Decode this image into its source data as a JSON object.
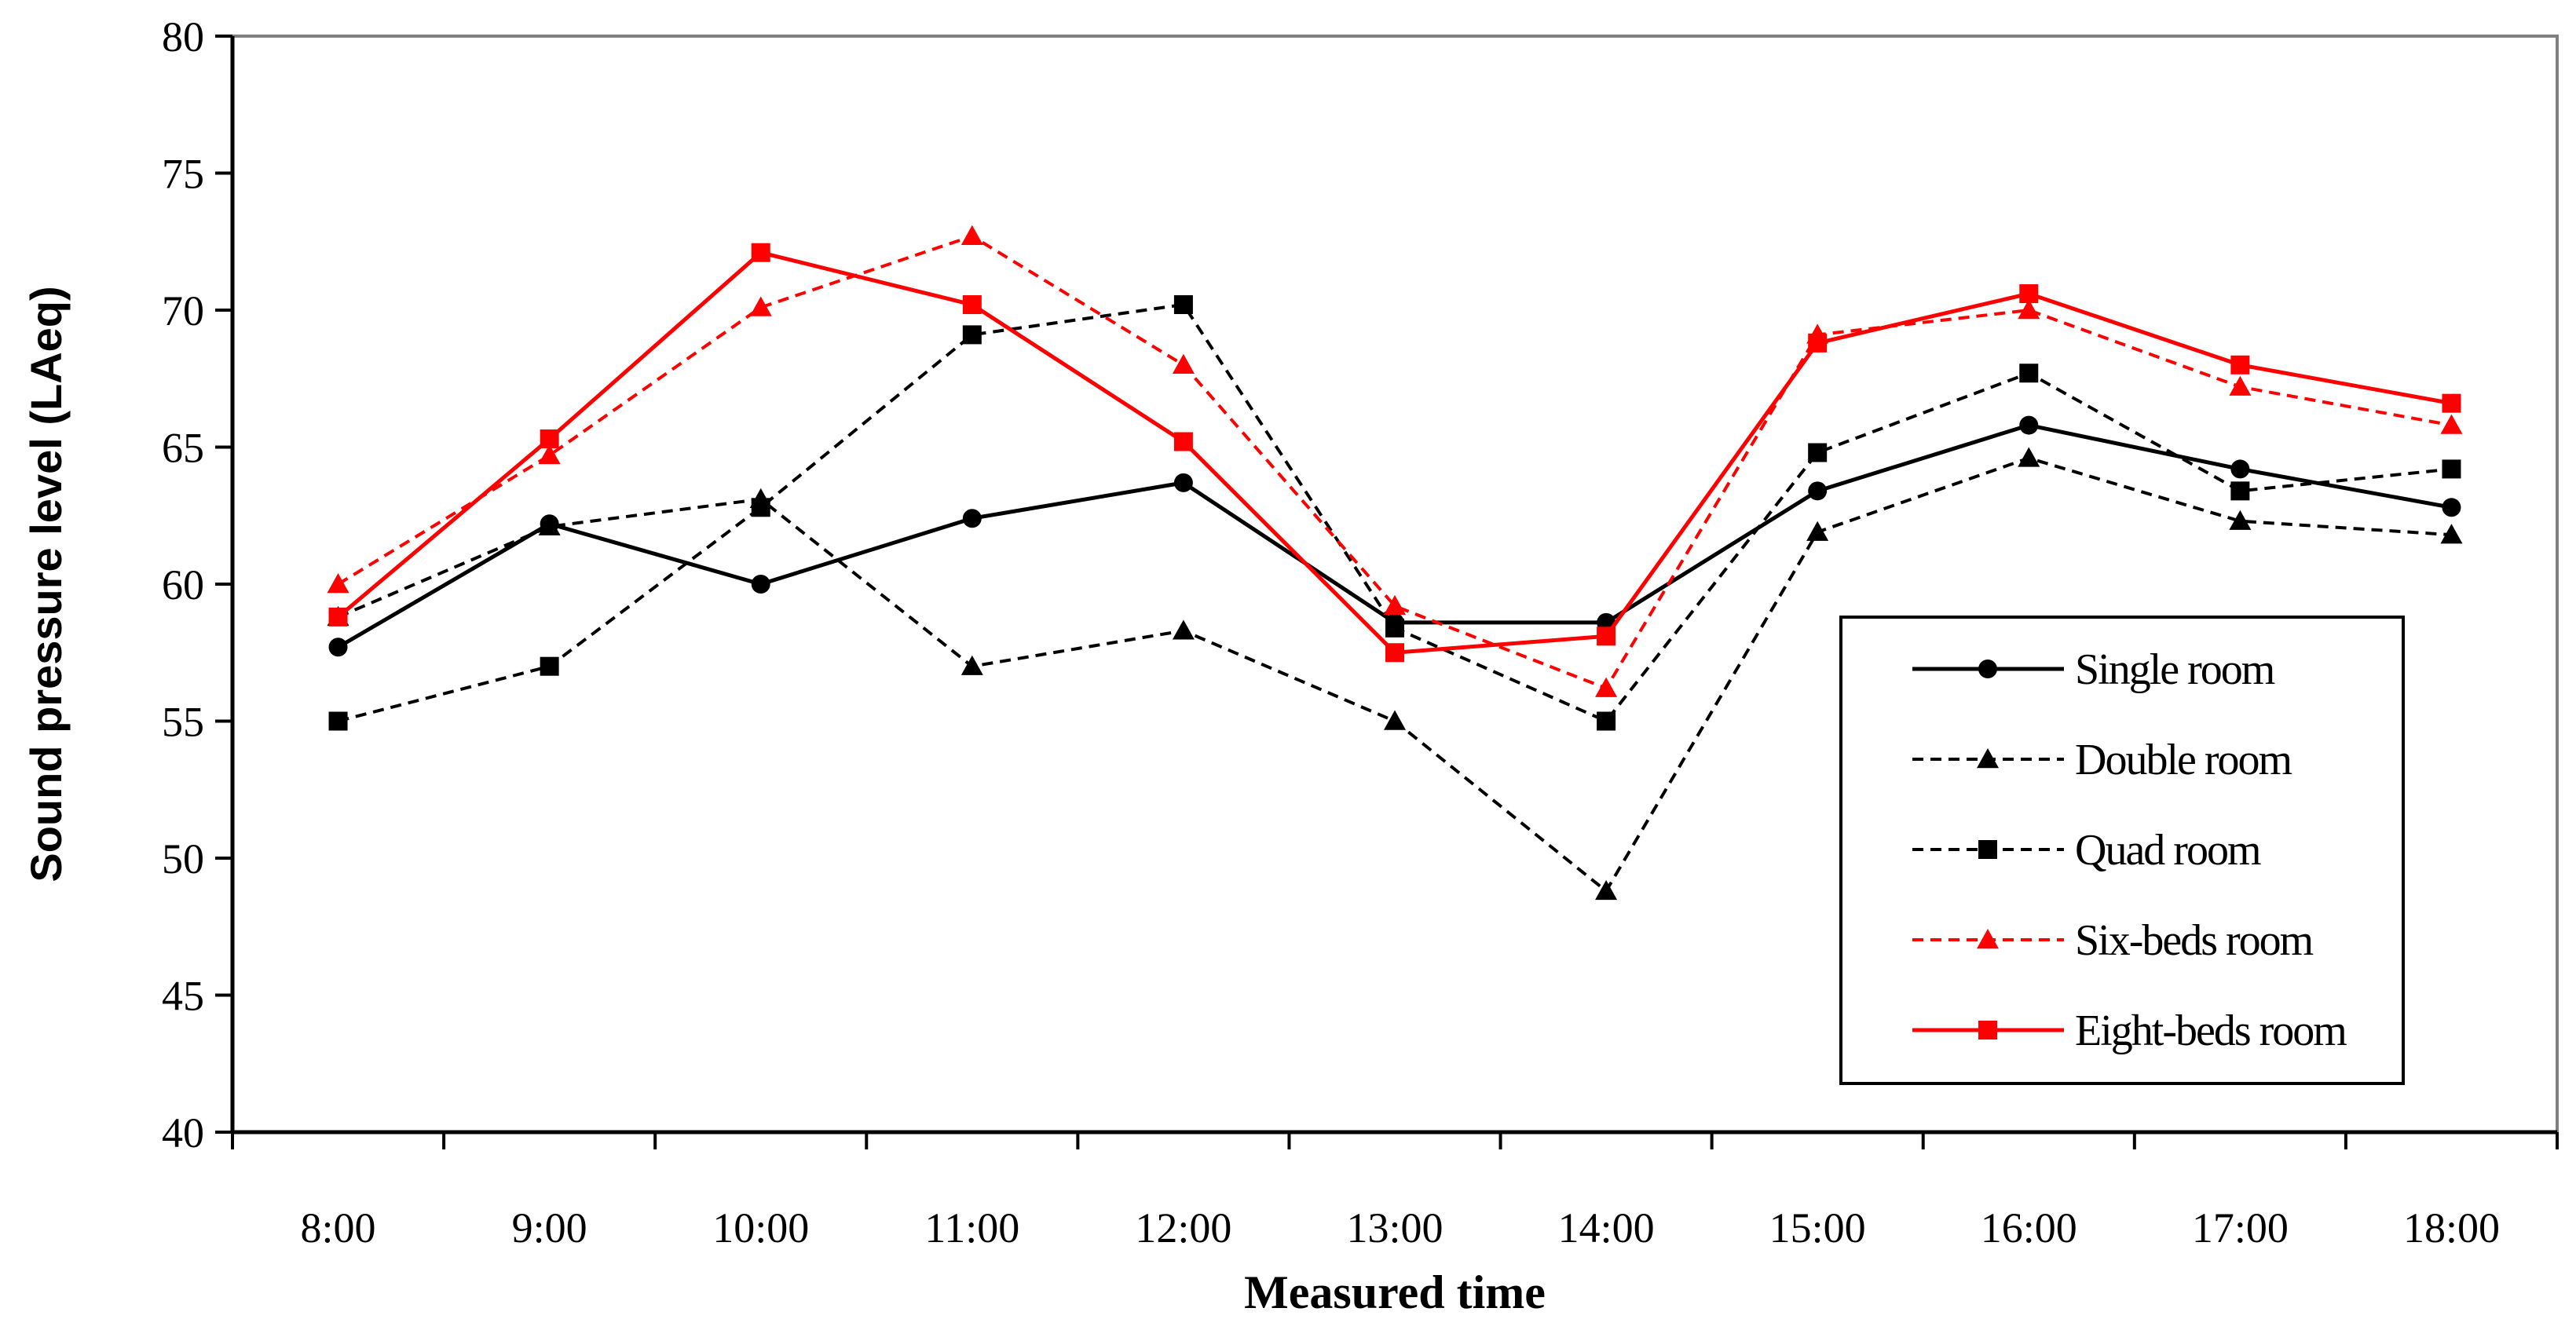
{
  "chart_data": {
    "type": "line",
    "title": "",
    "xlabel": "Measured time",
    "ylabel": "Sound pressure level (LAeq)",
    "ylim": [
      40,
      80
    ],
    "yticks": [
      40,
      45,
      50,
      55,
      60,
      65,
      70,
      75,
      80
    ],
    "categories": [
      "8:00",
      "9:00",
      "10:00",
      "11:00",
      "12:00",
      "13:00",
      "14:00",
      "15:00",
      "16:00",
      "17:00",
      "18:00"
    ],
    "legend_position": "bottom-right",
    "grid": false,
    "series": [
      {
        "name": "Single room",
        "color": "#000000",
        "dash": "solid",
        "marker": "circle",
        "values": [
          57.7,
          62.2,
          60.0,
          62.4,
          63.7,
          58.6,
          58.6,
          63.4,
          65.8,
          64.2,
          62.8
        ]
      },
      {
        "name": "Double room",
        "color": "#000000",
        "dash": "dashed",
        "marker": "triangle",
        "values": [
          58.8,
          62.1,
          63.1,
          57.0,
          58.3,
          55.0,
          48.8,
          61.9,
          64.6,
          62.3,
          61.8
        ]
      },
      {
        "name": "Quad room",
        "color": "#000000",
        "dash": "dashed",
        "marker": "square",
        "values": [
          55.0,
          57.0,
          62.8,
          69.1,
          70.2,
          58.4,
          55.0,
          64.8,
          67.7,
          63.4,
          64.2
        ]
      },
      {
        "name": "Six-beds room",
        "color": "#ff0000",
        "dash": "dashed",
        "marker": "triangle",
        "values": [
          60.0,
          64.7,
          70.1,
          72.7,
          68.0,
          59.2,
          56.2,
          69.1,
          70.0,
          67.2,
          65.8
        ]
      },
      {
        "name": "Eight-beds room",
        "color": "#ff0000",
        "dash": "solid",
        "marker": "square",
        "values": [
          58.8,
          65.3,
          72.1,
          70.2,
          65.2,
          57.5,
          58.1,
          68.8,
          70.6,
          68.0,
          66.6
        ]
      }
    ]
  }
}
